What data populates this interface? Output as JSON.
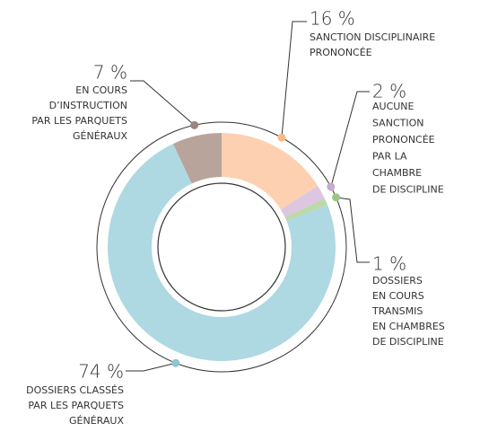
{
  "chart_data": {
    "type": "donut",
    "categories": [
      "SANCTION DISCIPLINAIRE\nPRONONCÉE",
      "AUCUNE\nSANCTION\nPRONONCÉE\nPAR LA\nCHAMBRE\nDE DISCIPLINE",
      "DOSSIERS\nEN COURS\nTRANSMIS\nEN CHAMBRES\nDE DISCIPLINE",
      "DOSSIERS CLASSÉS\nPAR LES PARQUETS\nGÉNÉRAUX",
      "EN COURS\nD’INSTRUCTION\nPAR LES PARQUETS\nGÉNÉRAUX"
    ],
    "values": [
      16,
      2,
      1,
      74,
      7
    ],
    "value_labels": [
      "16 %",
      "2 %",
      "1 %",
      "74 %",
      "7 %"
    ],
    "colors": [
      "#fdd0b1",
      "#dcc6e2",
      "#bcd9ab",
      "#aed8e2",
      "#b8a49b"
    ]
  }
}
